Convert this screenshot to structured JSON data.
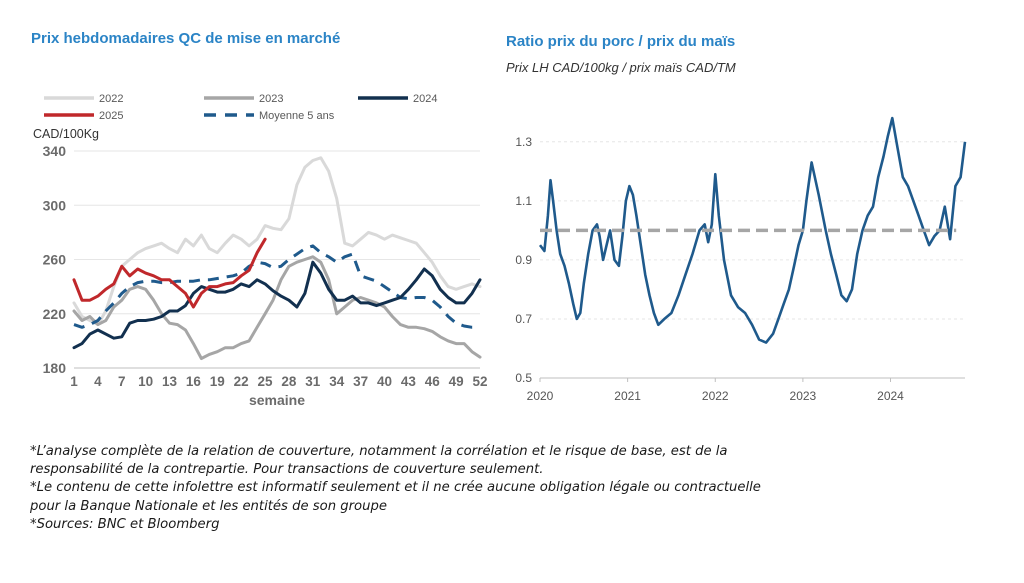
{
  "left_title": "Prix hebdomadaires QC de mise en marché",
  "right_title": "Ratio prix du porc / prix du maïs",
  "right_subtitle": "Prix LH CAD/100kg / prix maïs CAD/TM",
  "footnotes": [
    "*L’analyse complète de la relation de couverture, notamment la corrélation et le risque de base, est de la",
    "responsabilité de la contrepartie. Pour transactions de couverture seulement.",
    "*Le contenu de cette infolettre est informatif seulement et il ne crée aucune obligation légale ou contractuelle",
    "pour la Banque Nationale et les entités de son groupe",
    "*Sources: BNC et Bloomberg"
  ],
  "chart_data": [
    {
      "type": "line",
      "ylabel": "CAD/100Kg",
      "xlabel": "semaine",
      "ylim": [
        180,
        340
      ],
      "xlim": [
        1,
        52
      ],
      "yticks": [
        180,
        220,
        260,
        300,
        340
      ],
      "xticks": [
        1,
        4,
        7,
        10,
        13,
        16,
        19,
        22,
        25,
        28,
        31,
        34,
        37,
        40,
        43,
        46,
        49,
        52
      ],
      "legend_position": "top",
      "series": [
        {
          "name": "2022",
          "color": "#d9d9d9",
          "style": "solid",
          "x": [
            1,
            2,
            3,
            4,
            5,
            6,
            7,
            8,
            9,
            10,
            11,
            12,
            13,
            14,
            15,
            16,
            17,
            18,
            19,
            20,
            21,
            22,
            23,
            24,
            25,
            26,
            27,
            28,
            29,
            30,
            31,
            32,
            33,
            34,
            35,
            36,
            37,
            38,
            39,
            40,
            41,
            42,
            43,
            44,
            45,
            46,
            47,
            48,
            49,
            50,
            51,
            52
          ],
          "values": [
            228,
            218,
            215,
            212,
            222,
            240,
            255,
            260,
            265,
            268,
            270,
            272,
            268,
            265,
            275,
            270,
            278,
            268,
            265,
            272,
            278,
            275,
            270,
            275,
            285,
            283,
            282,
            290,
            315,
            328,
            333,
            335,
            325,
            305,
            272,
            270,
            275,
            280,
            278,
            275,
            278,
            276,
            274,
            272,
            265,
            258,
            248,
            240,
            238,
            240,
            242,
            240
          ]
        },
        {
          "name": "2023",
          "color": "#a6a6a6",
          "style": "solid",
          "x": [
            1,
            2,
            3,
            4,
            5,
            6,
            7,
            8,
            9,
            10,
            11,
            12,
            13,
            14,
            15,
            16,
            17,
            18,
            19,
            20,
            21,
            22,
            23,
            24,
            25,
            26,
            27,
            28,
            29,
            30,
            31,
            32,
            33,
            34,
            35,
            36,
            37,
            38,
            39,
            40,
            41,
            42,
            43,
            44,
            45,
            46,
            47,
            48,
            49,
            50,
            51,
            52
          ],
          "values": [
            222,
            215,
            218,
            212,
            215,
            225,
            230,
            238,
            240,
            238,
            230,
            220,
            213,
            212,
            208,
            198,
            187,
            190,
            192,
            195,
            195,
            198,
            200,
            210,
            220,
            230,
            245,
            255,
            258,
            260,
            262,
            258,
            245,
            220,
            225,
            230,
            232,
            230,
            228,
            225,
            218,
            212,
            210,
            210,
            209,
            207,
            203,
            200,
            198,
            198,
            192,
            188
          ]
        },
        {
          "name": "2024",
          "color": "#12304f",
          "style": "solid",
          "x": [
            1,
            2,
            3,
            4,
            5,
            6,
            7,
            8,
            9,
            10,
            11,
            12,
            13,
            14,
            15,
            16,
            17,
            18,
            19,
            20,
            21,
            22,
            23,
            24,
            25,
            26,
            27,
            28,
            29,
            30,
            31,
            32,
            33,
            34,
            35,
            36,
            37,
            38,
            39,
            40,
            41,
            42,
            43,
            44,
            45,
            46,
            47,
            48,
            49,
            50,
            51,
            52
          ],
          "values": [
            195,
            198,
            205,
            208,
            205,
            202,
            203,
            213,
            215,
            215,
            216,
            218,
            222,
            222,
            226,
            235,
            240,
            238,
            236,
            236,
            238,
            242,
            240,
            245,
            242,
            237,
            233,
            230,
            225,
            235,
            258,
            250,
            238,
            230,
            230,
            233,
            228,
            228,
            226,
            228,
            230,
            232,
            238,
            245,
            253,
            248,
            238,
            232,
            228,
            228,
            235,
            245
          ]
        },
        {
          "name": "2025",
          "color": "#c0282b",
          "style": "solid",
          "x": [
            1,
            2,
            3,
            4,
            5,
            6,
            7,
            8,
            9,
            10,
            11,
            12,
            13,
            14,
            15,
            16,
            17,
            18,
            19,
            20,
            21,
            22,
            23,
            24,
            25
          ],
          "values": [
            245,
            230,
            230,
            233,
            238,
            242,
            255,
            248,
            253,
            250,
            248,
            245,
            245,
            240,
            235,
            225,
            235,
            240,
            240,
            242,
            243,
            248,
            252,
            265,
            275
          ]
        },
        {
          "name": "Moyenne 5 ans",
          "color": "#1f5a8c",
          "style": "dashed",
          "x": [
            1,
            2,
            3,
            4,
            5,
            6,
            7,
            8,
            9,
            10,
            11,
            12,
            13,
            14,
            15,
            16,
            17,
            18,
            19,
            20,
            21,
            22,
            23,
            24,
            25,
            26,
            27,
            28,
            29,
            30,
            31,
            32,
            33,
            34,
            35,
            36,
            37,
            38,
            39,
            40,
            41,
            42,
            43,
            44,
            45,
            46,
            47,
            48,
            49,
            50,
            51,
            52
          ],
          "values": [
            212,
            210,
            212,
            215,
            222,
            228,
            235,
            240,
            243,
            244,
            244,
            243,
            243,
            244,
            244,
            244,
            245,
            245,
            246,
            247,
            248,
            250,
            255,
            258,
            257,
            254,
            255,
            260,
            264,
            268,
            270,
            265,
            262,
            258,
            262,
            264,
            248,
            246,
            244,
            240,
            236,
            232,
            231,
            232,
            232,
            230,
            225,
            218,
            213,
            211,
            210,
            210
          ]
        }
      ]
    },
    {
      "type": "line",
      "ylim": [
        0.5,
        1.35
      ],
      "yticks": [
        0.5,
        0.7,
        0.9,
        1.1,
        1.3
      ],
      "xticks": [
        "2020",
        "2021",
        "2022",
        "2023",
        "2024"
      ],
      "xlim": [
        2020.0,
        2024.85
      ],
      "series": [
        {
          "name": "",
          "color": "#1f5a8c",
          "style": "solid",
          "x": [
            2020.0,
            2020.05,
            2020.09,
            2020.12,
            2020.15,
            2020.19,
            2020.23,
            2020.28,
            2020.33,
            2020.38,
            2020.42,
            2020.46,
            2020.5,
            2020.55,
            2020.6,
            2020.65,
            2020.68,
            2020.72,
            2020.76,
            2020.8,
            2020.85,
            2020.9,
            2020.94,
            2020.98,
            2021.02,
            2021.06,
            2021.1,
            2021.15,
            2021.2,
            2021.25,
            2021.3,
            2021.35,
            2021.42,
            2021.5,
            2021.58,
            2021.66,
            2021.74,
            2021.82,
            2021.88,
            2021.92,
            2021.96,
            2022.0,
            2022.04,
            2022.1,
            2022.18,
            2022.26,
            2022.34,
            2022.42,
            2022.5,
            2022.58,
            2022.66,
            2022.72,
            2022.78,
            2022.84,
            2022.9,
            2022.95,
            2023.0,
            2023.04,
            2023.1,
            2023.18,
            2023.26,
            2023.32,
            2023.38,
            2023.44,
            2023.5,
            2023.56,
            2023.62,
            2023.68,
            2023.74,
            2023.8,
            2023.86,
            2023.92,
            2023.97,
            2024.02,
            2024.08,
            2024.14,
            2024.2,
            2024.26,
            2024.32,
            2024.38,
            2024.44,
            2024.5,
            2024.56,
            2024.62,
            2024.68,
            2024.74,
            2024.8,
            2024.85
          ],
          "values": [
            0.95,
            0.93,
            1.05,
            1.17,
            1.1,
            1.0,
            0.92,
            0.88,
            0.82,
            0.75,
            0.7,
            0.72,
            0.82,
            0.92,
            1.0,
            1.02,
            0.98,
            0.9,
            0.95,
            1.0,
            0.9,
            0.88,
            0.98,
            1.1,
            1.15,
            1.12,
            1.05,
            0.95,
            0.85,
            0.78,
            0.72,
            0.68,
            0.7,
            0.72,
            0.78,
            0.85,
            0.92,
            1.0,
            1.02,
            0.96,
            1.02,
            1.19,
            1.05,
            0.9,
            0.78,
            0.74,
            0.72,
            0.68,
            0.63,
            0.62,
            0.65,
            0.7,
            0.75,
            0.8,
            0.88,
            0.95,
            1.0,
            1.1,
            1.23,
            1.12,
            1.0,
            0.92,
            0.85,
            0.78,
            0.76,
            0.8,
            0.92,
            1.0,
            1.05,
            1.08,
            1.18,
            1.25,
            1.32,
            1.38,
            1.28,
            1.18,
            1.15,
            1.1,
            1.05,
            1.0,
            0.95,
            0.98,
            1.0,
            1.08,
            0.97,
            1.15,
            1.18,
            1.3
          ]
        },
        {
          "name": "",
          "color": "#a6a6a6",
          "style": "dashed",
          "x": [
            2020.0,
            2024.75
          ],
          "values": [
            1.0,
            1.0
          ]
        }
      ]
    }
  ]
}
